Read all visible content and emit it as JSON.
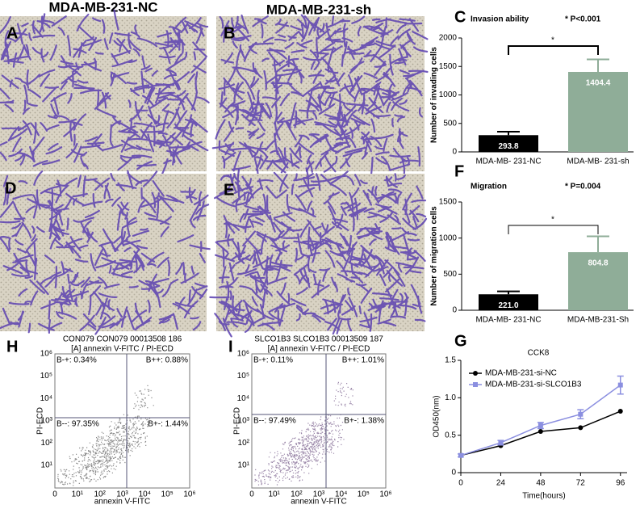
{
  "header": {
    "left": "MDA-MB-231-NC",
    "right": "MDA-MB-231-sh"
  },
  "letters": {
    "A": "A",
    "B": "B",
    "C": "C",
    "D": "D",
    "E": "E",
    "F": "F",
    "G": "G",
    "H": "H",
    "I": "I"
  },
  "chart_data": [
    {
      "type": "bar",
      "title": "Invasion ability",
      "annotation": "* P<0.001",
      "significance": "*",
      "categories": [
        "MDA-MB- 231-NC",
        "MDA-MB- 231-sh"
      ],
      "values": [
        293.8,
        1404.4
      ],
      "value_labels": [
        "293.8",
        "1404.4"
      ],
      "errors": [
        60,
        220
      ],
      "colors": [
        "#000000",
        "#8fad98"
      ],
      "y_label": "Number of invading cells",
      "ylim": [
        0,
        2000
      ],
      "yticks": [
        0,
        500,
        1000,
        1500,
        2000
      ]
    },
    {
      "type": "bar",
      "title": "Migration",
      "annotation": "* P=0.004",
      "significance": "*",
      "categories": [
        "MDA-MB- 231-NC",
        "MDA-MB-231-Sh"
      ],
      "values": [
        221.0,
        804.8
      ],
      "value_labels": [
        "221.0",
        "804.8"
      ],
      "errors": [
        40,
        220
      ],
      "colors": [
        "#000000",
        "#8fad98"
      ],
      "y_label": "Number of migration cells",
      "ylim": [
        0,
        1500
      ],
      "yticks": [
        0,
        500,
        1000,
        1500
      ]
    },
    {
      "type": "line",
      "title": "CCK8",
      "x": [
        0,
        24,
        48,
        72,
        96
      ],
      "x_label": "Time(hours)",
      "y_label": "OD450(nm)",
      "xlim": [
        0,
        100
      ],
      "xticks": [
        0,
        24,
        48,
        72,
        96
      ],
      "ylim": [
        0,
        1.5
      ],
      "yticks": [
        0,
        0.5,
        {
          "value": 1.0,
          "label": "1.0"
        },
        1.5
      ],
      "series": [
        {
          "name": "MDA-MB-231-si-NC",
          "color": "#000000",
          "values": [
            0.23,
            0.36,
            0.55,
            0.6,
            0.82
          ]
        },
        {
          "name": "MDA-MB-231-si-SLCO1B3",
          "color": "#8b8fe0",
          "values": [
            0.23,
            0.4,
            0.63,
            0.78,
            1.17
          ],
          "errors": [
            0.02,
            0.03,
            0.04,
            0.06,
            0.12
          ]
        }
      ]
    }
  ],
  "flow": [
    {
      "title_lines": [
        "CON079 CON079 00013508 186",
        "[A] annexin V-FITC / PI-ECD"
      ],
      "quadrants": {
        "tl": "B-+: 0.34%",
        "tr": "B++: 0.88%",
        "bl": "B--: 97.35%",
        "br": "B+-: 1.44%"
      },
      "x_label": "annexin V-FITC",
      "y_label": "PI-ECD",
      "x_ticks": [
        "0",
        "10¹",
        "10²",
        "10³",
        "10⁴",
        "10⁵",
        "10⁶"
      ],
      "y_ticks": [
        "10¹",
        "10²",
        "10³",
        "10⁴",
        "10⁵",
        "10⁶"
      ]
    },
    {
      "title_lines": [
        "SLCO1B3 SLCO1B3 00013509 187",
        "[A] annexin V-FITC / PI-ECD"
      ],
      "quadrants": {
        "tl": "B-+: 0.11%",
        "tr": "B++: 1.01%",
        "bl": "B--: 97.49%",
        "br": "B+-: 1.38%"
      },
      "x_label": "annexin V-FITC",
      "y_label": "PI-ECD",
      "x_ticks": [
        "0",
        "10¹",
        "10²",
        "10³",
        "10⁴",
        "10⁵",
        "10⁶"
      ],
      "y_ticks": [
        "10¹",
        "10²",
        "10³",
        "10⁴",
        "10⁵",
        "10⁶"
      ]
    }
  ]
}
